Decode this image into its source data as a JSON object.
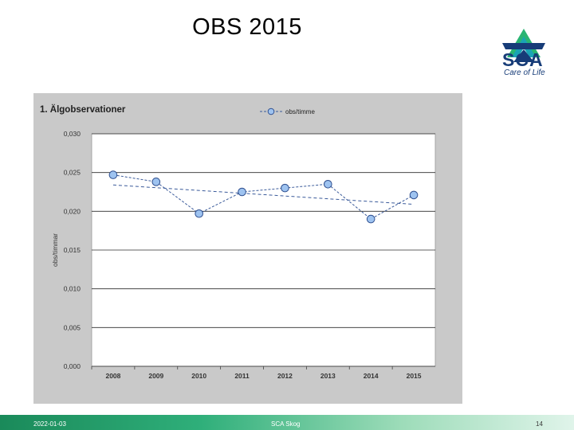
{
  "slide": {
    "title": "OBS 2015",
    "footer_date": "2022-01-03",
    "footer_center": "SCA Skog",
    "page_number": "14"
  },
  "logo": {
    "brand": "SCA",
    "tagline": "Care of Life",
    "colors": {
      "blue": "#173c78",
      "green": "#2ab573",
      "teal": "#1aa3b5"
    }
  },
  "colors": {
    "panel": "#c9c9c9",
    "plot_bg": "#ffffff",
    "line": "#3a5a9a",
    "marker": "#9ec3f0",
    "marker_edge": "#2f4f8f",
    "footer": "#2faf7a"
  },
  "chart_data": {
    "type": "line",
    "title": "1. Älgobservationer",
    "xlabel": "",
    "ylabel": "obs/timmar",
    "categories": [
      "2008",
      "2009",
      "2010",
      "2011",
      "2012",
      "2013",
      "2014",
      "2015"
    ],
    "series": [
      {
        "name": "obs/timme",
        "values": [
          0.0247,
          0.0238,
          0.0197,
          0.0225,
          0.023,
          0.0235,
          0.019,
          0.0221
        ]
      }
    ],
    "trendline": {
      "start": 0.0234,
      "end": 0.0209
    },
    "ylim": [
      0,
      0.03
    ],
    "yticks": [
      "0,000",
      "0,005",
      "0,010",
      "0,015",
      "0,020",
      "0,025",
      "0,030"
    ],
    "ytick_values": [
      0,
      0.005,
      0.01,
      0.015,
      0.02,
      0.025,
      0.03
    ],
    "legend_position": "top-right",
    "grid": true
  }
}
